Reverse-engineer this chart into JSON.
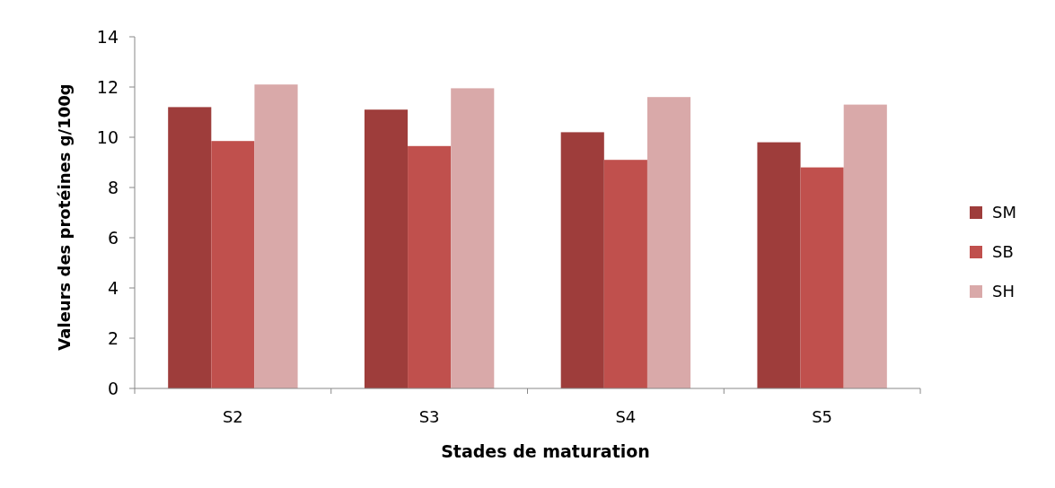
{
  "chart_data": {
    "type": "bar",
    "xlabel": "Stades de maturation",
    "ylabel": "Valeurs des protéines g/100g",
    "categories": [
      "S2",
      "S3",
      "S4",
      "S5"
    ],
    "series": [
      {
        "name": "SM",
        "color": "#9e3d3b",
        "values": [
          11.2,
          11.1,
          10.2,
          9.8
        ]
      },
      {
        "name": "SB",
        "color": "#c0504d",
        "values": [
          9.85,
          9.65,
          9.1,
          8.8
        ]
      },
      {
        "name": "SH",
        "color": "#d9a9a9",
        "values": [
          12.1,
          11.95,
          11.6,
          11.3
        ]
      }
    ],
    "ylim": [
      0,
      14
    ],
    "yticks": [
      0,
      2,
      4,
      6,
      8,
      10,
      12,
      14
    ],
    "grid": false,
    "legend": "right"
  }
}
